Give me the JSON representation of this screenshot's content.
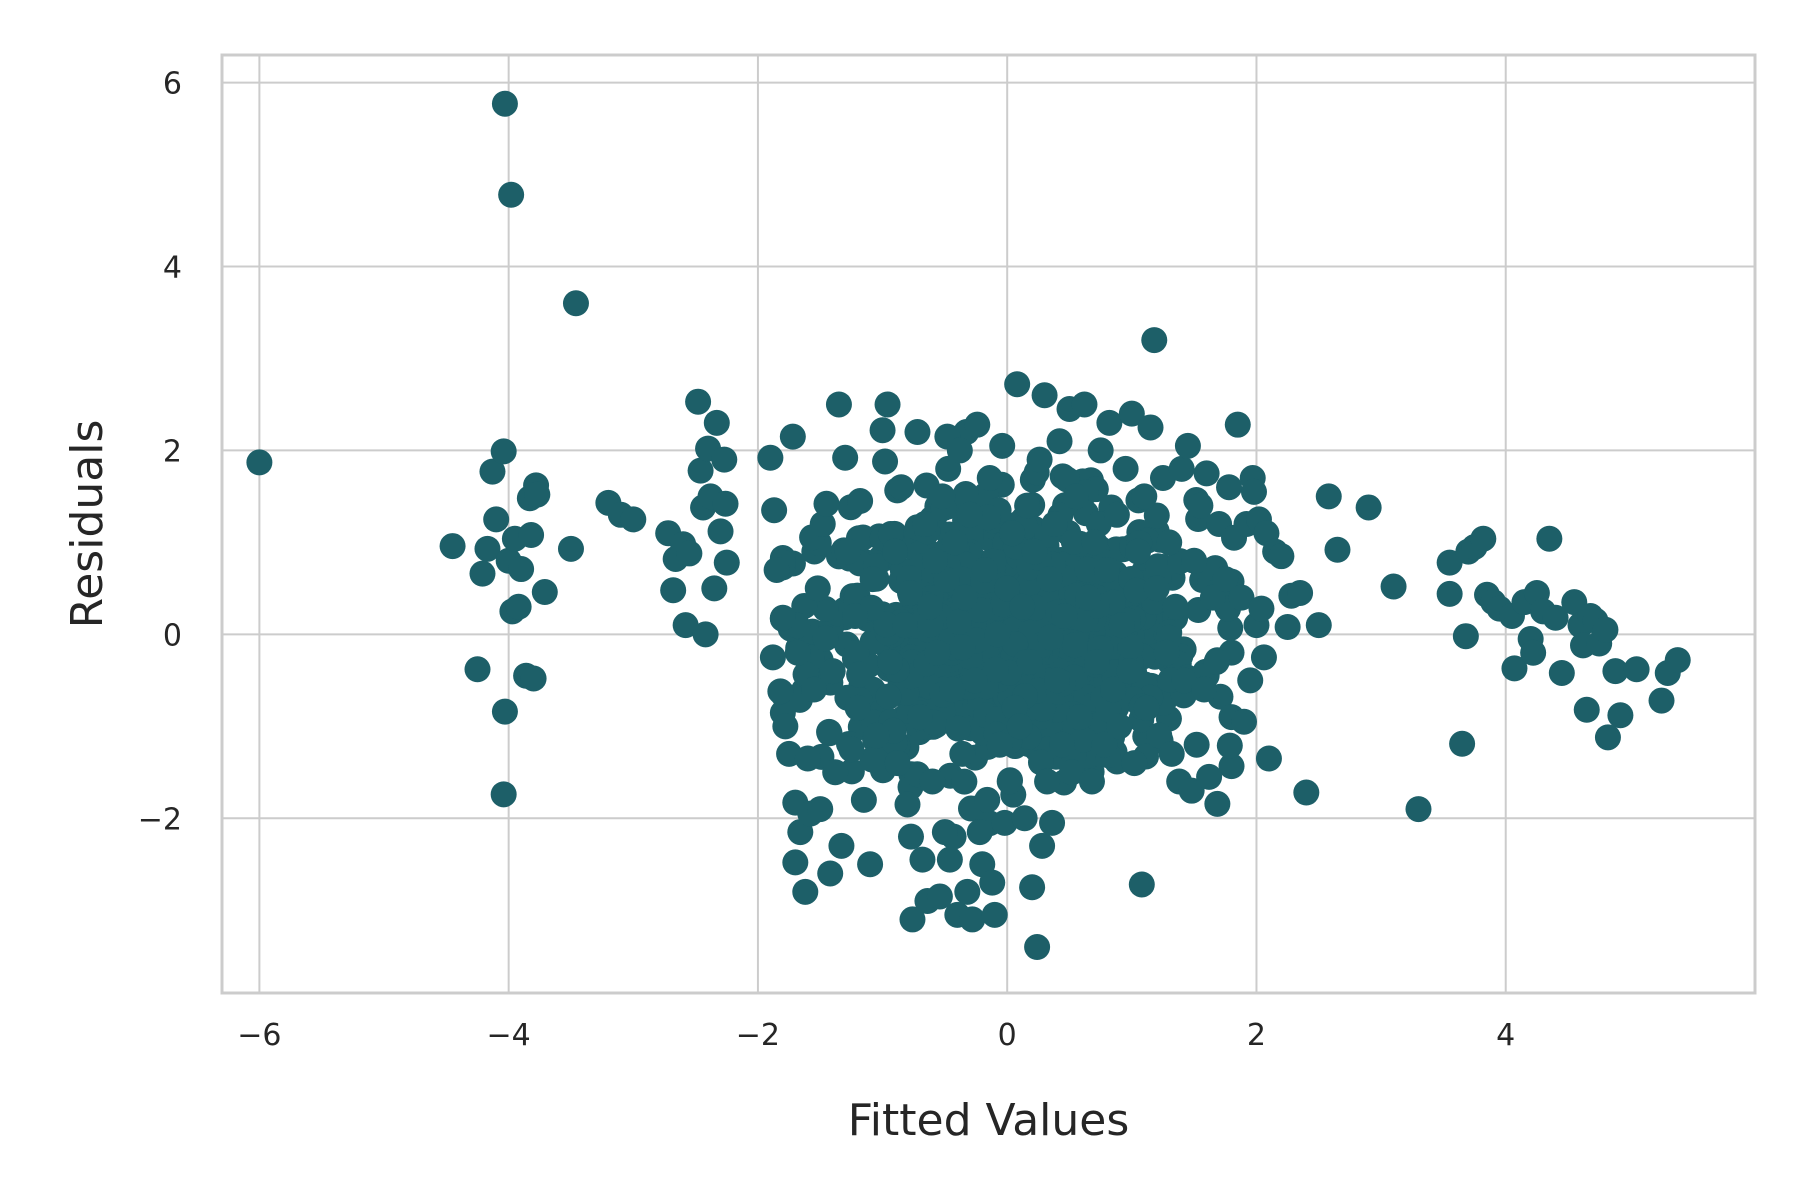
{
  "chart_data": {
    "type": "scatter",
    "title": "",
    "xlabel": "Fitted Values",
    "ylabel": "Residuals",
    "xlim": [
      -6.3,
      6.0
    ],
    "ylim": [
      -3.9,
      6.3
    ],
    "xticks": [
      -6,
      -4,
      -2,
      0,
      2,
      4
    ],
    "yticks": [
      -2,
      0,
      2,
      4,
      6
    ],
    "xtick_labels": [
      "−6",
      "−4",
      "−2",
      "0",
      "2",
      "4"
    ],
    "ytick_labels": [
      "−2",
      "0",
      "2",
      "4",
      "6"
    ],
    "grid": true,
    "point_color": "#1d5f68",
    "points": [
      [
        -6.0,
        1.87
      ],
      [
        -4.03,
        5.77
      ],
      [
        -3.98,
        4.78
      ],
      [
        -3.46,
        3.6
      ],
      [
        -4.45,
        0.96
      ],
      [
        -4.25,
        -0.38
      ],
      [
        -4.21,
        0.66
      ],
      [
        -4.17,
        0.93
      ],
      [
        -4.13,
        1.77
      ],
      [
        -4.1,
        1.25
      ],
      [
        -4.04,
        1.99
      ],
      [
        -4.03,
        -0.84
      ],
      [
        -4.04,
        -1.74
      ],
      [
        -4.0,
        0.8
      ],
      [
        -3.97,
        0.25
      ],
      [
        -3.95,
        1.04
      ],
      [
        -3.92,
        0.3
      ],
      [
        -3.9,
        0.71
      ],
      [
        -3.86,
        -0.45
      ],
      [
        -3.83,
        1.48
      ],
      [
        -3.82,
        1.08
      ],
      [
        -3.8,
        -0.48
      ],
      [
        -3.78,
        1.62
      ],
      [
        -3.77,
        1.52
      ],
      [
        -3.71,
        0.46
      ],
      [
        -3.5,
        0.93
      ],
      [
        -3.2,
        1.43
      ],
      [
        -3.1,
        1.3
      ],
      [
        -3.0,
        1.25
      ],
      [
        -2.72,
        1.1
      ],
      [
        -2.68,
        0.48
      ],
      [
        -2.66,
        0.82
      ],
      [
        -2.6,
        0.98
      ],
      [
        -2.58,
        0.1
      ],
      [
        -2.55,
        0.88
      ],
      [
        -2.48,
        2.53
      ],
      [
        -2.46,
        1.78
      ],
      [
        -2.44,
        1.38
      ],
      [
        -2.42,
        0.0
      ],
      [
        -2.4,
        2.02
      ],
      [
        -2.38,
        1.5
      ],
      [
        -2.35,
        0.5
      ],
      [
        -2.33,
        2.3
      ],
      [
        -2.3,
        1.12
      ],
      [
        -2.27,
        1.9
      ],
      [
        -2.26,
        1.42
      ],
      [
        -2.25,
        0.78
      ],
      [
        -1.9,
        1.92
      ],
      [
        -1.87,
        1.35
      ],
      [
        -1.88,
        -0.25
      ],
      [
        -1.85,
        0.7
      ],
      [
        -1.82,
        -0.62
      ],
      [
        -1.8,
        0.18
      ],
      [
        -1.78,
        -1.0
      ],
      [
        -1.75,
        -1.3
      ],
      [
        -1.72,
        2.15
      ],
      [
        -1.7,
        -2.48
      ],
      [
        -1.68,
        -0.2
      ],
      [
        -1.66,
        -2.15
      ],
      [
        -1.62,
        -2.8
      ],
      [
        -1.6,
        -1.35
      ],
      [
        -1.58,
        -1.95
      ],
      [
        -1.55,
        -0.6
      ],
      [
        -1.52,
        0.5
      ],
      [
        -1.5,
        -1.9
      ],
      [
        -1.48,
        1.2
      ],
      [
        -1.45,
        1.42
      ],
      [
        -1.42,
        -2.6
      ],
      [
        -1.4,
        -0.4
      ],
      [
        -1.38,
        -1.5
      ],
      [
        -1.35,
        2.5
      ],
      [
        -1.33,
        -2.3
      ],
      [
        -1.3,
        1.92
      ],
      [
        -1.28,
        0.9
      ],
      [
        -1.25,
        -1.25
      ],
      [
        -1.22,
        0.2
      ],
      [
        -1.2,
        -0.8
      ],
      [
        -1.18,
        1.45
      ],
      [
        -1.15,
        -1.8
      ],
      [
        -1.1,
        -2.5
      ],
      [
        -1.08,
        0.6
      ],
      [
        -1.05,
        -1.1
      ],
      [
        -1.0,
        2.22
      ],
      [
        -0.98,
        1.88
      ],
      [
        -0.96,
        2.5
      ],
      [
        -0.94,
        -0.3
      ],
      [
        -0.9,
        0.9
      ],
      [
        -0.88,
        -1.4
      ],
      [
        -0.85,
        1.6
      ],
      [
        -0.82,
        0.1
      ],
      [
        -0.8,
        -1.85
      ],
      [
        -0.78,
        0.45
      ],
      [
        -0.76,
        -3.1
      ],
      [
        -0.72,
        2.2
      ],
      [
        -0.7,
        -0.9
      ],
      [
        -0.68,
        -2.45
      ],
      [
        -0.66,
        1.2
      ],
      [
        -0.64,
        -2.9
      ],
      [
        -0.62,
        0.3
      ],
      [
        -0.6,
        -1.6
      ],
      [
        -0.58,
        0.8
      ],
      [
        -0.56,
        -0.2
      ],
      [
        -0.54,
        -2.85
      ],
      [
        -0.52,
        1.5
      ],
      [
        -0.5,
        -2.15
      ],
      [
        -0.48,
        2.15
      ],
      [
        -0.46,
        -2.45
      ],
      [
        -0.44,
        -0.6
      ],
      [
        -0.42,
        1.0
      ],
      [
        -0.4,
        -3.05
      ],
      [
        -0.38,
        2.0
      ],
      [
        -0.36,
        -1.3
      ],
      [
        -0.34,
        0.4
      ],
      [
        -0.32,
        -2.8
      ],
      [
        -0.3,
        1.3
      ],
      [
        -0.28,
        -3.1
      ],
      [
        -0.26,
        -0.5
      ],
      [
        -0.24,
        2.28
      ],
      [
        -0.22,
        -2.15
      ],
      [
        -0.2,
        -2.5
      ],
      [
        -0.18,
        0.7
      ],
      [
        -0.16,
        -1.8
      ],
      [
        -0.14,
        1.7
      ],
      [
        -0.12,
        -2.7
      ],
      [
        -0.1,
        -3.05
      ],
      [
        -0.08,
        0.0
      ],
      [
        -0.06,
        -1.2
      ],
      [
        -0.04,
        2.05
      ],
      [
        -0.02,
        -2.05
      ],
      [
        0.0,
        0.5
      ],
      [
        0.02,
        -1.6
      ],
      [
        0.04,
        1.1
      ],
      [
        0.06,
        -0.8
      ],
      [
        0.08,
        2.72
      ],
      [
        0.1,
        -1.0
      ],
      [
        0.12,
        0.3
      ],
      [
        0.14,
        -2.0
      ],
      [
        0.16,
        1.4
      ],
      [
        0.18,
        -0.3
      ],
      [
        0.2,
        -2.75
      ],
      [
        0.22,
        0.9
      ],
      [
        0.24,
        -3.4
      ],
      [
        0.26,
        1.9
      ],
      [
        0.28,
        -2.3
      ],
      [
        0.3,
        2.6
      ],
      [
        0.32,
        -1.6
      ],
      [
        0.34,
        0.6
      ],
      [
        0.36,
        -2.05
      ],
      [
        0.38,
        1.2
      ],
      [
        0.4,
        -0.5
      ],
      [
        0.42,
        2.1
      ],
      [
        0.44,
        -1.2
      ],
      [
        0.46,
        0.2
      ],
      [
        0.5,
        2.45
      ],
      [
        0.52,
        -1.5
      ],
      [
        0.55,
        1.5
      ],
      [
        0.58,
        -0.9
      ],
      [
        0.62,
        2.5
      ],
      [
        0.65,
        0.4
      ],
      [
        0.68,
        -1.6
      ],
      [
        0.7,
        1.0
      ],
      [
        0.72,
        -0.3
      ],
      [
        0.75,
        2.0
      ],
      [
        0.78,
        -1.2
      ],
      [
        0.8,
        0.7
      ],
      [
        0.82,
        2.3
      ],
      [
        0.85,
        -0.6
      ],
      [
        0.88,
        1.3
      ],
      [
        0.9,
        -1.0
      ],
      [
        0.92,
        0.1
      ],
      [
        0.95,
        1.8
      ],
      [
        0.98,
        -0.4
      ],
      [
        1.0,
        2.4
      ],
      [
        1.02,
        -1.4
      ],
      [
        1.05,
        0.9
      ],
      [
        1.08,
        -2.72
      ],
      [
        1.1,
        1.5
      ],
      [
        1.12,
        -0.8
      ],
      [
        1.15,
        2.25
      ],
      [
        1.18,
        3.2
      ],
      [
        1.2,
        0.5
      ],
      [
        1.22,
        -1.1
      ],
      [
        1.25,
        1.7
      ],
      [
        1.28,
        -0.2
      ],
      [
        1.3,
        1.0
      ],
      [
        1.32,
        -1.3
      ],
      [
        1.35,
        0.3
      ],
      [
        1.38,
        -1.6
      ],
      [
        1.4,
        1.8
      ],
      [
        1.42,
        -0.5
      ],
      [
        1.45,
        2.05
      ],
      [
        1.48,
        -1.7
      ],
      [
        1.5,
        0.8
      ],
      [
        1.52,
        -1.2
      ],
      [
        1.55,
        1.4
      ],
      [
        1.58,
        -0.6
      ],
      [
        1.6,
        1.75
      ],
      [
        1.62,
        -1.55
      ],
      [
        1.65,
        0.4
      ],
      [
        1.68,
        -0.3
      ],
      [
        1.7,
        1.2
      ],
      [
        1.75,
        0.6
      ],
      [
        1.78,
        1.6
      ],
      [
        1.8,
        -0.9
      ],
      [
        1.82,
        1.05
      ],
      [
        1.85,
        2.28
      ],
      [
        1.88,
        0.4
      ],
      [
        1.9,
        -0.95
      ],
      [
        1.92,
        1.2
      ],
      [
        1.95,
        -0.5
      ],
      [
        1.97,
        1.7
      ],
      [
        1.98,
        1.55
      ],
      [
        2.0,
        0.1
      ],
      [
        2.02,
        1.25
      ],
      [
        2.04,
        0.28
      ],
      [
        2.06,
        -0.25
      ],
      [
        2.08,
        1.1
      ],
      [
        2.1,
        -1.35
      ],
      [
        2.15,
        0.9
      ],
      [
        2.2,
        0.85
      ],
      [
        2.25,
        0.08
      ],
      [
        2.28,
        0.42
      ],
      [
        2.35,
        0.45
      ],
      [
        2.4,
        -1.72
      ],
      [
        2.5,
        0.1
      ],
      [
        2.58,
        1.5
      ],
      [
        2.65,
        0.92
      ],
      [
        2.9,
        1.38
      ],
      [
        3.1,
        0.52
      ],
      [
        3.3,
        -1.9
      ],
      [
        3.55,
        0.78
      ],
      [
        3.55,
        0.44
      ],
      [
        3.65,
        -1.19
      ],
      [
        3.68,
        -0.02
      ],
      [
        3.7,
        0.9
      ],
      [
        3.75,
        0.95
      ],
      [
        3.82,
        1.04
      ],
      [
        3.85,
        0.43
      ],
      [
        3.9,
        0.35
      ],
      [
        3.95,
        0.28
      ],
      [
        4.05,
        0.2
      ],
      [
        4.07,
        -0.37
      ],
      [
        4.15,
        0.35
      ],
      [
        4.2,
        -0.05
      ],
      [
        4.22,
        -0.2
      ],
      [
        4.25,
        0.45
      ],
      [
        4.3,
        0.25
      ],
      [
        4.35,
        1.04
      ],
      [
        4.4,
        0.18
      ],
      [
        4.45,
        -0.42
      ],
      [
        4.55,
        0.35
      ],
      [
        4.6,
        0.1
      ],
      [
        4.62,
        -0.12
      ],
      [
        4.65,
        -0.82
      ],
      [
        4.68,
        0.2
      ],
      [
        4.72,
        0.15
      ],
      [
        4.75,
        -0.1
      ],
      [
        4.8,
        0.05
      ],
      [
        4.82,
        -1.12
      ],
      [
        4.88,
        -0.4
      ],
      [
        4.92,
        -0.88
      ],
      [
        5.05,
        -0.38
      ],
      [
        5.25,
        -0.72
      ],
      [
        5.3,
        -0.42
      ],
      [
        5.38,
        -0.28
      ]
    ],
    "dense_cluster": {
      "center": [
        0.0,
        0.0
      ],
      "spread": [
        1.0,
        0.9
      ],
      "count": 900,
      "x_range": [
        -1.8,
        1.8
      ],
      "y_range": [
        -2.2,
        2.2
      ]
    }
  }
}
